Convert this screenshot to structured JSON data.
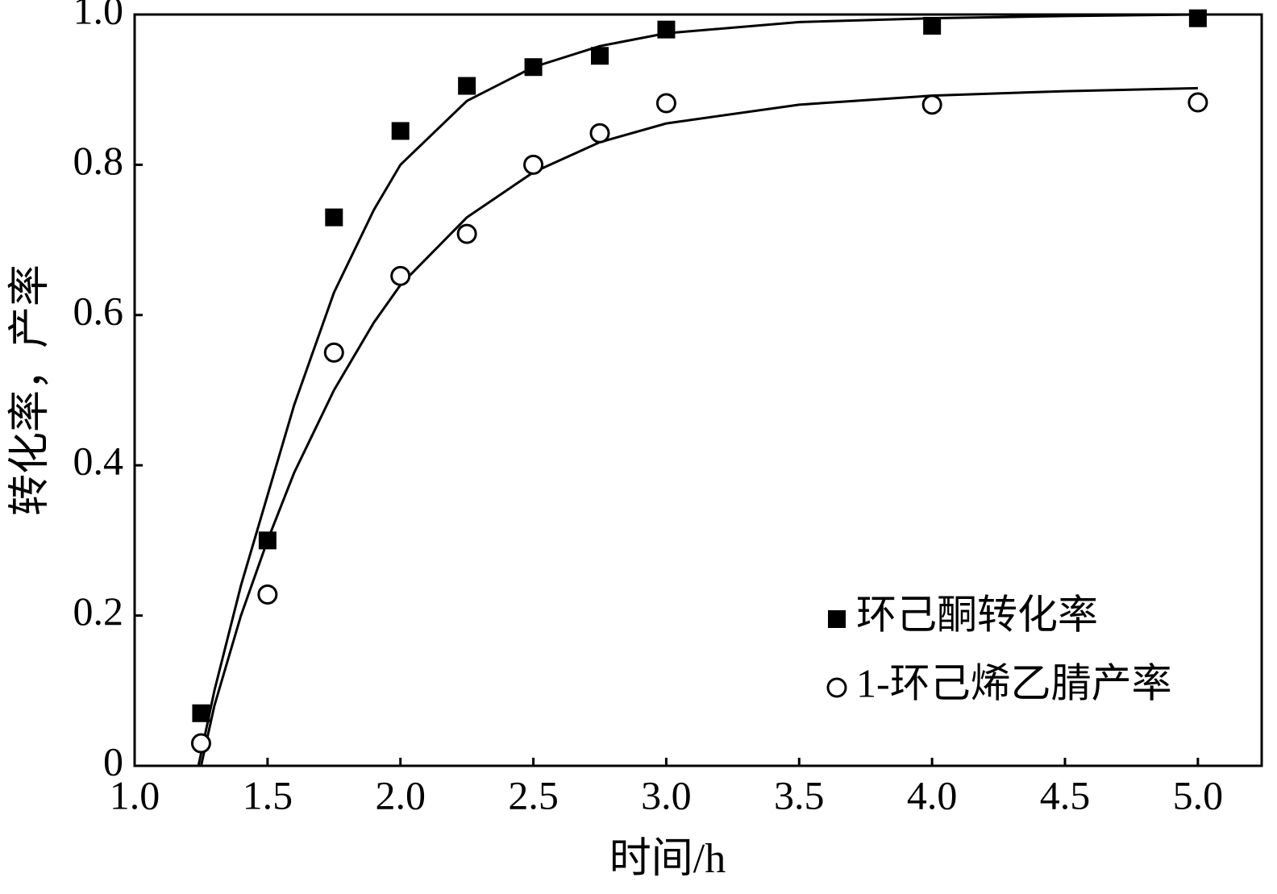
{
  "chart_data": {
    "type": "scatter",
    "x_label": "时间/h",
    "y_label": "转化率，产率",
    "xlim": [
      1.0,
      5.24
    ],
    "ylim": [
      0,
      1.0
    ],
    "xticks": [
      {
        "value": 1.0,
        "label": "1.0"
      },
      {
        "value": 1.5,
        "label": "1.5"
      },
      {
        "value": 2.0,
        "label": "2.0"
      },
      {
        "value": 2.5,
        "label": "2.5"
      },
      {
        "value": 3.0,
        "label": "3.0"
      },
      {
        "value": 3.5,
        "label": "3.5"
      },
      {
        "value": 4.0,
        "label": "4.0"
      },
      {
        "value": 4.5,
        "label": "4.5"
      },
      {
        "value": 5.0,
        "label": "5.0"
      }
    ],
    "yticks": [
      0,
      0.2,
      0.4,
      0.6,
      0.8,
      {
        "value": 1.0,
        "label": "1.0"
      }
    ],
    "legend": "lower right",
    "series": [
      {
        "name": "环己酮转化率",
        "marker": "square",
        "color": "#000000",
        "x": [
          1.25,
          1.5,
          1.75,
          2.0,
          2.25,
          2.5,
          2.75,
          3.0,
          4.0,
          5.0
        ],
        "values": [
          0.07,
          0.3,
          0.73,
          0.845,
          0.905,
          0.93,
          0.945,
          0.98,
          0.985,
          0.995
        ],
        "fit": {
          "x": [
            1.24,
            1.3,
            1.4,
            1.5,
            1.6,
            1.75,
            1.9,
            2.0,
            2.25,
            2.5,
            2.75,
            3.0,
            3.5,
            4.0,
            4.5,
            5.0
          ],
          "values": [
            0,
            0.1,
            0.24,
            0.36,
            0.48,
            0.63,
            0.74,
            0.8,
            0.885,
            0.93,
            0.958,
            0.975,
            0.99,
            0.995,
            0.998,
            1.0
          ]
        }
      },
      {
        "name": "1-环己烯乙腈产率",
        "marker": "circle",
        "color": "#000000",
        "x": [
          1.25,
          1.5,
          1.75,
          2.0,
          2.25,
          2.5,
          2.75,
          3.0,
          4.0,
          5.0
        ],
        "values": [
          0.03,
          0.228,
          0.55,
          0.652,
          0.708,
          0.8,
          0.842,
          0.882,
          0.88,
          0.883
        ],
        "fit": {
          "x": [
            1.25,
            1.3,
            1.4,
            1.5,
            1.6,
            1.75,
            1.9,
            2.0,
            2.25,
            2.5,
            2.75,
            3.0,
            3.5,
            4.0,
            4.5,
            5.0
          ],
          "values": [
            0,
            0.08,
            0.2,
            0.3,
            0.39,
            0.5,
            0.59,
            0.64,
            0.73,
            0.79,
            0.83,
            0.855,
            0.88,
            0.892,
            0.898,
            0.902
          ]
        }
      }
    ]
  }
}
